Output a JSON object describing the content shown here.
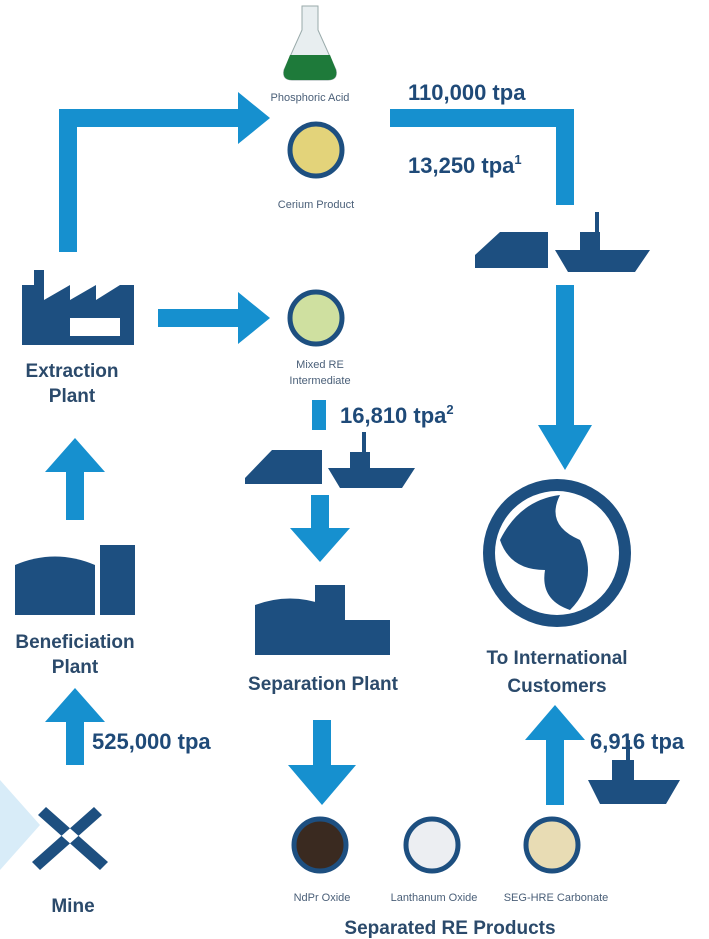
{
  "products": [
    {
      "label": "Phosphoric Acid"
    },
    {
      "label": "Cerium Product"
    },
    {
      "lines": [
        "Mixed RE",
        "Intermediate"
      ]
    },
    {
      "label": "NdPr Oxide"
    },
    {
      "label": "Lanthanum Oxide"
    },
    {
      "label": "SEG-HRE Carbonate"
    }
  ],
  "plants": [
    {
      "lines": [
        "Extraction",
        "Plant"
      ]
    },
    {
      "lines": [
        "Beneficiation",
        "Plant"
      ]
    },
    {
      "lines": [
        "Separation Plant"
      ]
    },
    {
      "lines": [
        "To International",
        "Customers"
      ]
    },
    {
      "lines": [
        "Mine"
      ]
    }
  ],
  "group_label": "Separated RE Products",
  "flows": [
    {
      "amount": "110,000 tpa"
    },
    {
      "amount": "13,250 tpa",
      "note": "1"
    },
    {
      "amount": "16,810 tpa",
      "note": "2"
    },
    {
      "amount": "525,000 tpa"
    },
    {
      "amount": "6,916 tpa"
    }
  ]
}
